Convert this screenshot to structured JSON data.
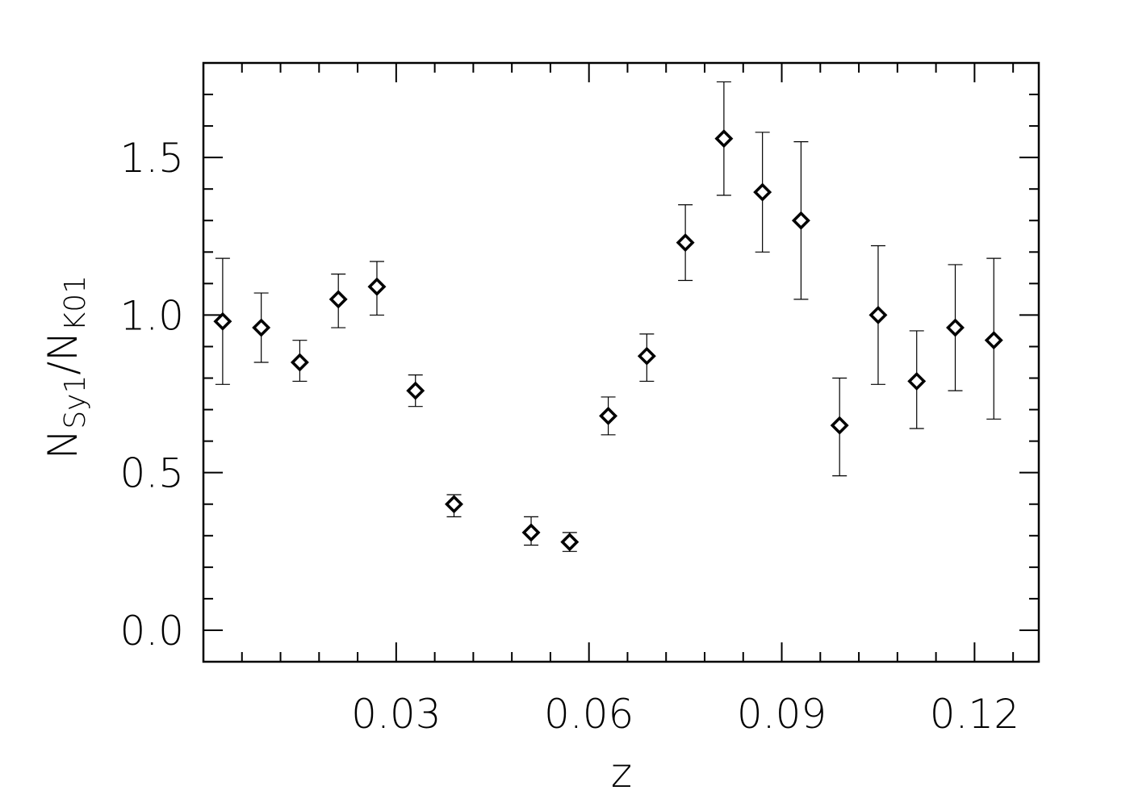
{
  "chart_data": {
    "type": "scatter",
    "title": "",
    "xlabel": "z",
    "ylabel": {
      "main1": "N",
      "sub1": "Sy1",
      "slash": "/",
      "main2": "N",
      "sub2": "K01"
    },
    "xlim": [
      0.0,
      0.13
    ],
    "ylim": [
      -0.1,
      1.8
    ],
    "xticks": [
      0.03,
      0.06,
      0.09,
      0.12
    ],
    "xtick_labels": [
      "0.03",
      "0.06",
      "0.09",
      "0.12"
    ],
    "yticks": [
      0.0,
      0.5,
      1.0,
      1.5
    ],
    "ytick_labels": [
      "0.0",
      "0.5",
      "1.0",
      "1.5"
    ],
    "grid": false,
    "marker": "diamond",
    "error_bars": true,
    "points": [
      {
        "x": 0.003,
        "y": 0.98,
        "ylo": 0.78,
        "yhi": 1.18
      },
      {
        "x": 0.009,
        "y": 0.96,
        "ylo": 0.85,
        "yhi": 1.07
      },
      {
        "x": 0.015,
        "y": 0.85,
        "ylo": 0.79,
        "yhi": 0.92
      },
      {
        "x": 0.021,
        "y": 1.05,
        "ylo": 0.96,
        "yhi": 1.13
      },
      {
        "x": 0.027,
        "y": 1.09,
        "ylo": 1.0,
        "yhi": 1.17
      },
      {
        "x": 0.033,
        "y": 0.76,
        "ylo": 0.71,
        "yhi": 0.81
      },
      {
        "x": 0.039,
        "y": 0.4,
        "ylo": 0.36,
        "yhi": 0.43
      },
      {
        "x": 0.051,
        "y": 0.31,
        "ylo": 0.27,
        "yhi": 0.36
      },
      {
        "x": 0.057,
        "y": 0.28,
        "ylo": 0.25,
        "yhi": 0.31
      },
      {
        "x": 0.063,
        "y": 0.68,
        "ylo": 0.62,
        "yhi": 0.74
      },
      {
        "x": 0.069,
        "y": 0.87,
        "ylo": 0.79,
        "yhi": 0.94
      },
      {
        "x": 0.075,
        "y": 1.23,
        "ylo": 1.11,
        "yhi": 1.35
      },
      {
        "x": 0.081,
        "y": 1.56,
        "ylo": 1.38,
        "yhi": 1.74
      },
      {
        "x": 0.087,
        "y": 1.39,
        "ylo": 1.2,
        "yhi": 1.58
      },
      {
        "x": 0.093,
        "y": 1.3,
        "ylo": 1.05,
        "yhi": 1.55
      },
      {
        "x": 0.099,
        "y": 0.65,
        "ylo": 0.49,
        "yhi": 0.8
      },
      {
        "x": 0.105,
        "y": 1.0,
        "ylo": 0.78,
        "yhi": 1.22
      },
      {
        "x": 0.111,
        "y": 0.79,
        "ylo": 0.64,
        "yhi": 0.95
      },
      {
        "x": 0.117,
        "y": 0.96,
        "ylo": 0.76,
        "yhi": 1.16
      },
      {
        "x": 0.123,
        "y": 0.92,
        "ylo": 0.67,
        "yhi": 1.18
      }
    ]
  }
}
